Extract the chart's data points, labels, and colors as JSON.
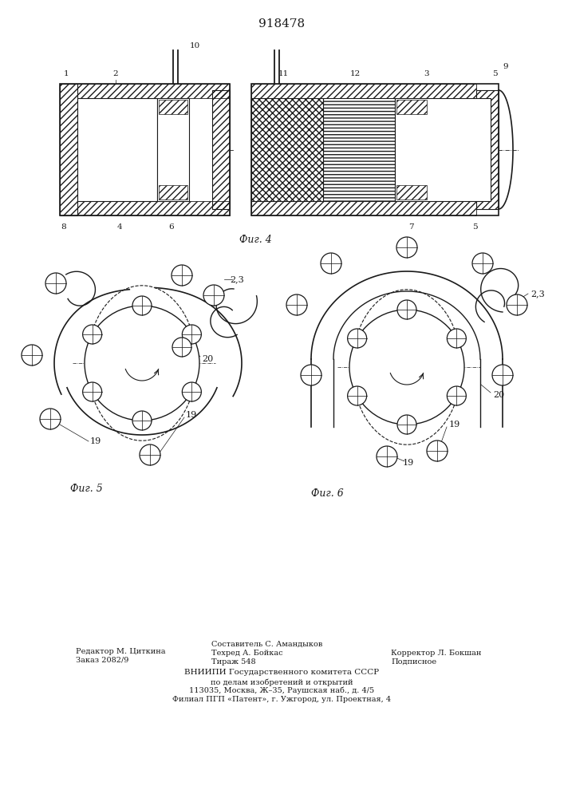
{
  "title": "918478",
  "fig4_label": "Фиг. 4",
  "fig5_label": "Фиг. 5",
  "fig6_label": "Фиг. 6",
  "footer_left_line1": "Редактор М. Циткина",
  "footer_left_line2": "Заказ 2082/9",
  "footer_mid_line1": "Составитель С. Амандыков",
  "footer_mid_line2": "Техред А. Бойкас",
  "footer_mid_line3": "Тираж 548",
  "footer_right_line1": "Корректор Л. Бокшан",
  "footer_right_line2": "Подписное",
  "footer_vnipi_line1": "ВНИИПИ Государственного комитета СССР",
  "footer_vnipi_line2": "по делам изобретений и открытий",
  "footer_vnipi_line3": "113035, Москва, Ж–35, Раушская наб., д. 4/5",
  "footer_vnipi_line4": "Филиал ПГП «Патент», г. Ужгород, ул. Проектная, 4",
  "bg_color": "#ffffff",
  "line_color": "#1a1a1a",
  "label_fontsize": 9,
  "title_fontsize": 11,
  "footer_fontsize": 7.0
}
